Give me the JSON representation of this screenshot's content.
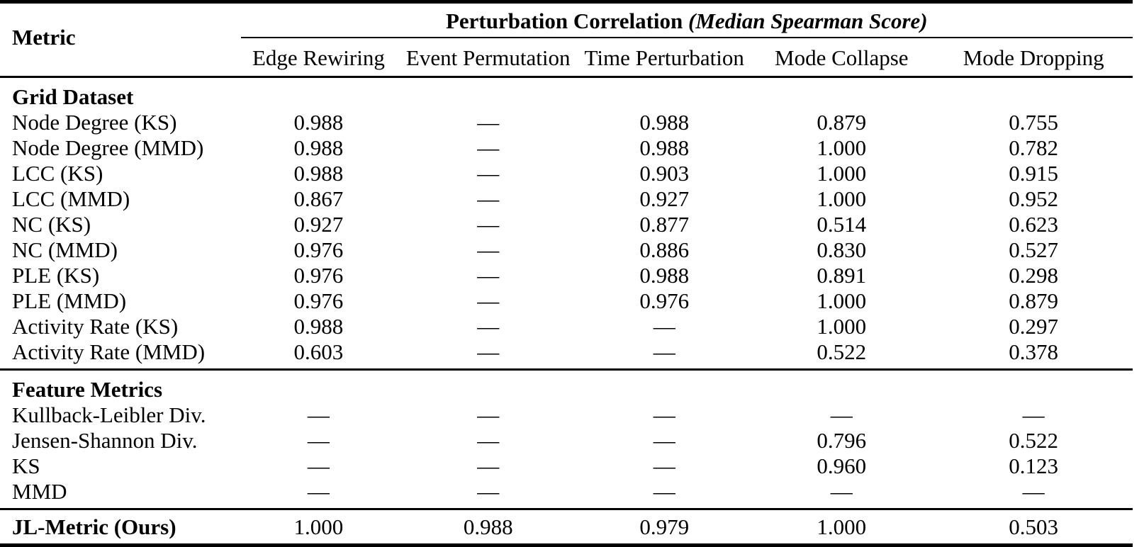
{
  "table": {
    "col1_header": "Metric",
    "span_header_bold": "Perturbation Correlation",
    "span_header_italic": "(Median Spearman Score)",
    "columns": [
      "Edge Rewiring",
      "Event Permutation",
      "Time Perturbation",
      "Mode Collapse",
      "Mode Dropping"
    ],
    "dash": "—",
    "sections": [
      {
        "title": "Grid Dataset",
        "rows": [
          {
            "label": "Node Degree (KS)",
            "values": [
              "0.988",
              "—",
              "0.988",
              "0.879",
              "0.755"
            ]
          },
          {
            "label": "Node Degree (MMD)",
            "values": [
              "0.988",
              "—",
              "0.988",
              "1.000",
              "0.782"
            ]
          },
          {
            "label": "LCC (KS)",
            "values": [
              "0.988",
              "—",
              "0.903",
              "1.000",
              "0.915"
            ]
          },
          {
            "label": "LCC (MMD)",
            "values": [
              "0.867",
              "—",
              "0.927",
              "1.000",
              "0.952"
            ]
          },
          {
            "label": "NC (KS)",
            "values": [
              "0.927",
              "—",
              "0.877",
              "0.514",
              "0.623"
            ]
          },
          {
            "label": "NC (MMD)",
            "values": [
              "0.976",
              "—",
              "0.886",
              "0.830",
              "0.527"
            ]
          },
          {
            "label": "PLE (KS)",
            "values": [
              "0.976",
              "—",
              "0.988",
              "0.891",
              "0.298"
            ]
          },
          {
            "label": "PLE (MMD)",
            "values": [
              "0.976",
              "—",
              "0.976",
              "1.000",
              "0.879"
            ]
          },
          {
            "label": "Activity Rate (KS)",
            "values": [
              "0.988",
              "—",
              "—",
              "1.000",
              "0.297"
            ]
          },
          {
            "label": "Activity Rate (MMD)",
            "values": [
              "0.603",
              "—",
              "—",
              "0.522",
              "0.378"
            ]
          }
        ]
      },
      {
        "title": "Feature Metrics",
        "rows": [
          {
            "label": "Kullback-Leibler Div.",
            "values": [
              "—",
              "—",
              "—",
              "—",
              "—"
            ]
          },
          {
            "label": "Jensen-Shannon Div.",
            "values": [
              "—",
              "—",
              "—",
              "0.796",
              "0.522"
            ]
          },
          {
            "label": "KS",
            "values": [
              "—",
              "—",
              "—",
              "0.960",
              "0.123"
            ]
          },
          {
            "label": "MMD",
            "values": [
              "—",
              "—",
              "—",
              "—",
              "—"
            ]
          }
        ]
      }
    ],
    "footer": {
      "label": "JL-Metric (Ours)",
      "values": [
        "1.000",
        "0.988",
        "0.979",
        "1.000",
        "0.503"
      ]
    }
  }
}
